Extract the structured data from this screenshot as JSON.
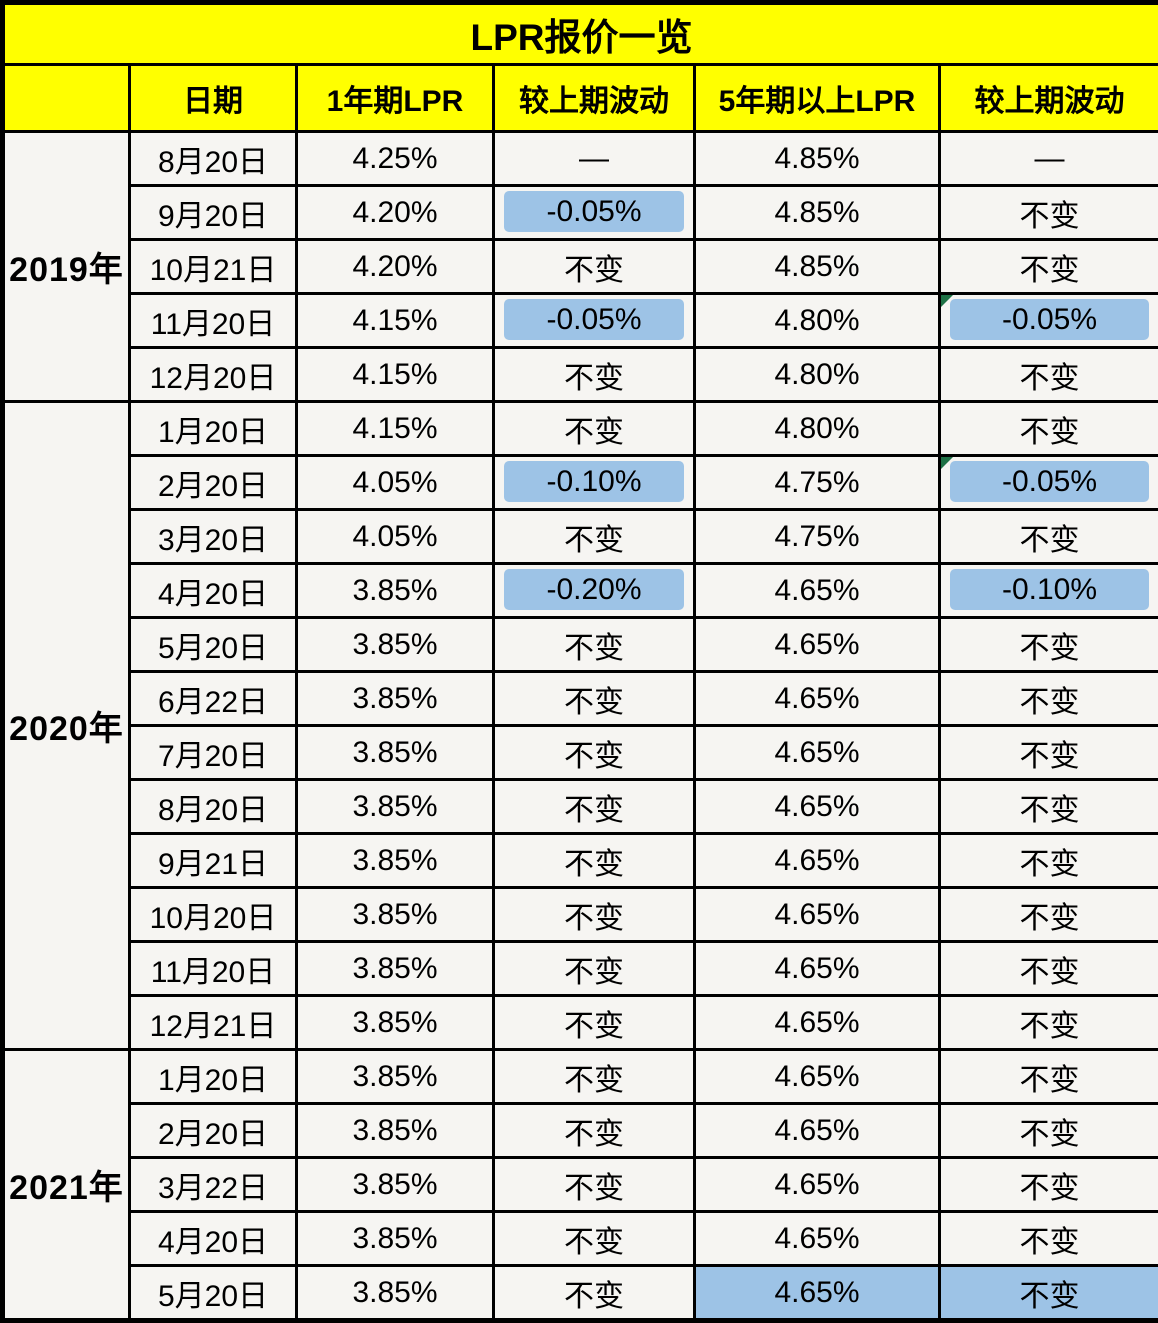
{
  "colors": {
    "header_bg": "#FFFF00",
    "cell_bg": "#F6F5F2",
    "highlight_blue": "#9DC3E6",
    "border": "#000000",
    "note_marker_green": "#1E7145",
    "text": "#000000"
  },
  "chart_data": {
    "type": "table",
    "title": "LPR报价一览",
    "corner_header": "",
    "columns": [
      "日期",
      "1年期LPR",
      "较上期波动",
      "5年期以上LPR",
      "较上期波动"
    ],
    "groups": [
      {
        "year": "2019年",
        "rows": [
          {
            "date": "8月20日",
            "cells": [
              "4.25%",
              "—",
              "4.85%",
              "—"
            ]
          },
          {
            "date": "9月20日",
            "cells": [
              "4.20%",
              {
                "text": "-0.05%",
                "highlight": true
              },
              "4.85%",
              "不变"
            ]
          },
          {
            "date": "10月21日",
            "cells": [
              "4.20%",
              "不变",
              "4.85%",
              "不变"
            ]
          },
          {
            "date": "11月20日",
            "cells": [
              "4.15%",
              {
                "text": "-0.05%",
                "highlight": true
              },
              "4.80%",
              {
                "text": "-0.05%",
                "highlight": true,
                "note_marker": true
              }
            ]
          },
          {
            "date": "12月20日",
            "cells": [
              "4.15%",
              "不变",
              "4.80%",
              "不变"
            ]
          }
        ]
      },
      {
        "year": "2020年",
        "rows": [
          {
            "date": "1月20日",
            "cells": [
              "4.15%",
              "不变",
              "4.80%",
              "不变"
            ]
          },
          {
            "date": "2月20日",
            "cells": [
              "4.05%",
              {
                "text": "-0.10%",
                "highlight": true
              },
              "4.75%",
              {
                "text": "-0.05%",
                "highlight": true,
                "note_marker": true
              }
            ]
          },
          {
            "date": "3月20日",
            "cells": [
              "4.05%",
              "不变",
              "4.75%",
              "不变"
            ]
          },
          {
            "date": "4月20日",
            "cells": [
              "3.85%",
              {
                "text": "-0.20%",
                "highlight": true
              },
              "4.65%",
              {
                "text": "-0.10%",
                "highlight": true
              }
            ]
          },
          {
            "date": "5月20日",
            "cells": [
              "3.85%",
              "不变",
              "4.65%",
              "不变"
            ]
          },
          {
            "date": "6月22日",
            "cells": [
              "3.85%",
              "不变",
              "4.65%",
              "不变"
            ]
          },
          {
            "date": "7月20日",
            "cells": [
              "3.85%",
              "不变",
              "4.65%",
              "不变"
            ]
          },
          {
            "date": "8月20日",
            "cells": [
              "3.85%",
              "不变",
              "4.65%",
              "不变"
            ]
          },
          {
            "date": "9月21日",
            "cells": [
              "3.85%",
              "不变",
              "4.65%",
              "不变"
            ]
          },
          {
            "date": "10月20日",
            "cells": [
              "3.85%",
              "不变",
              "4.65%",
              "不变"
            ]
          },
          {
            "date": "11月20日",
            "cells": [
              "3.85%",
              "不变",
              "4.65%",
              "不变"
            ]
          },
          {
            "date": "12月21日",
            "cells": [
              "3.85%",
              "不变",
              "4.65%",
              "不变"
            ]
          }
        ]
      },
      {
        "year": "2021年",
        "rows": [
          {
            "date": "1月20日",
            "cells": [
              "3.85%",
              "不变",
              "4.65%",
              "不变"
            ]
          },
          {
            "date": "2月20日",
            "cells": [
              "3.85%",
              "不变",
              "4.65%",
              "不变"
            ]
          },
          {
            "date": "3月22日",
            "cells": [
              "3.85%",
              "不变",
              "4.65%",
              "不变"
            ]
          },
          {
            "date": "4月20日",
            "cells": [
              "3.85%",
              "不变",
              "4.65%",
              "不变"
            ]
          },
          {
            "date": "5月20日",
            "cells": [
              "3.85%",
              "不变",
              {
                "text": "4.65%",
                "highlight_full": true
              },
              {
                "text": "不变",
                "highlight_full": true
              }
            ]
          }
        ]
      }
    ]
  }
}
